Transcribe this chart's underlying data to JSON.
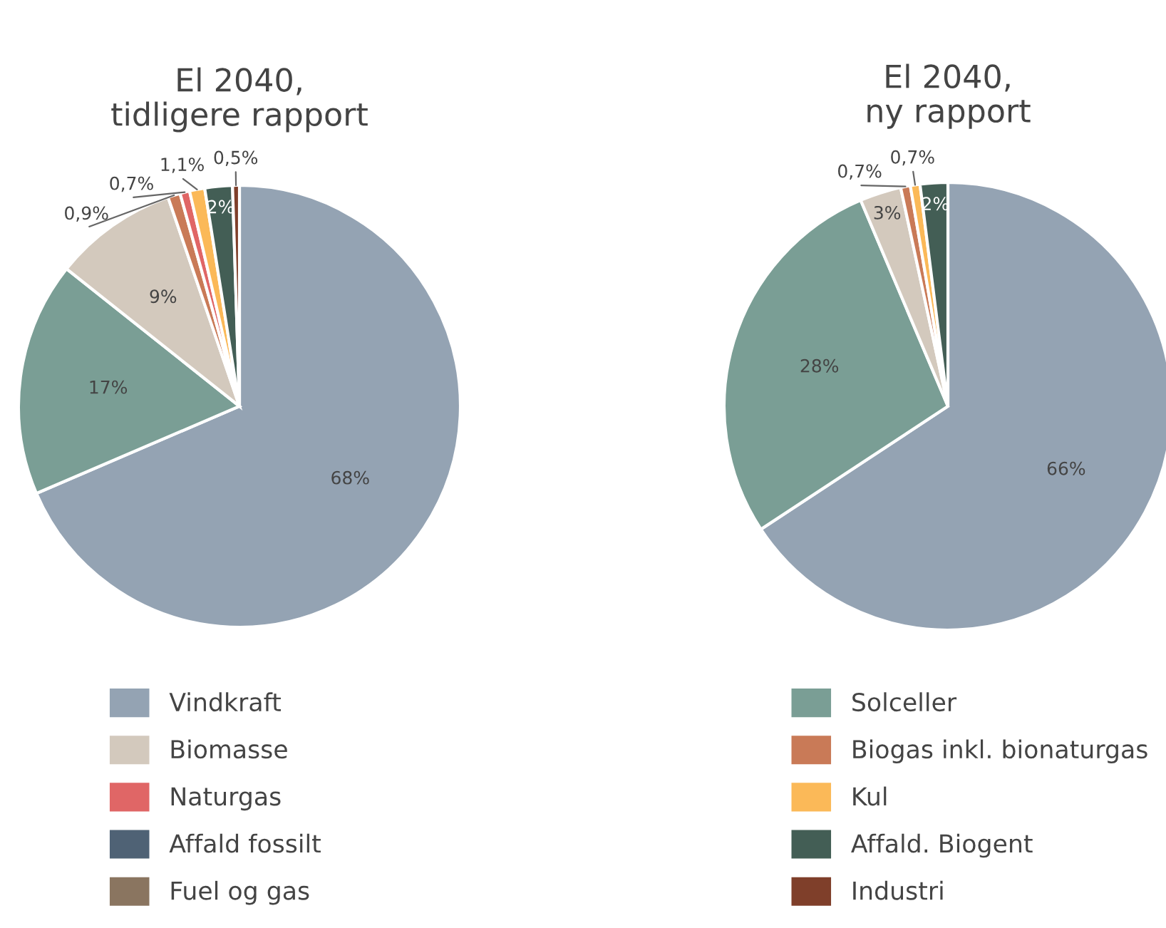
{
  "chart_data": [
    {
      "type": "pie",
      "title": "El 2040,\ntidligere rapport",
      "categories": [
        "Vindkraft",
        "Solceller",
        "Biomasse",
        "Biogas inkl. bionaturgas",
        "Naturgas",
        "Kul",
        "Affald fossilt",
        "Affald. Biogent",
        "Fuel og gas",
        "Industri"
      ],
      "values": [
        68,
        17,
        9,
        0.9,
        0.7,
        1.1,
        null,
        2,
        null,
        0.5
      ],
      "value_labels": [
        "68%",
        "17%",
        "9%",
        "0,9%",
        "0,7%",
        "1,1%",
        null,
        "2%",
        null,
        "0,5%"
      ],
      "colors": [
        "#94a3b3",
        "#7a9e95",
        "#d3c9bd",
        "#c97a57",
        "#e06666",
        "#fbb958",
        "#4f6275",
        "#435e55",
        "#8a7560",
        "#7f3f2a"
      ],
      "legend": "bottom"
    },
    {
      "type": "pie",
      "title": "El 2040,\nny rapport",
      "categories": [
        null,
        null,
        null,
        null,
        null,
        null,
        null,
        null,
        null,
        null
      ],
      "values": [
        66,
        28,
        3,
        0.7,
        null,
        0.7,
        null,
        2,
        null,
        null
      ],
      "value_labels": [
        "66%",
        "28%",
        "3%",
        "0,7%",
        null,
        "0,7%",
        null,
        "2%",
        null,
        null
      ],
      "colors": [
        "#94a3b3",
        "#7a9e95",
        "#d3c9bd",
        "#c97a57",
        "#e06666",
        "#fbb958",
        "#4f6275",
        "#435e55",
        "#8a7560",
        "#7f3f2a"
      ]
    }
  ]
}
